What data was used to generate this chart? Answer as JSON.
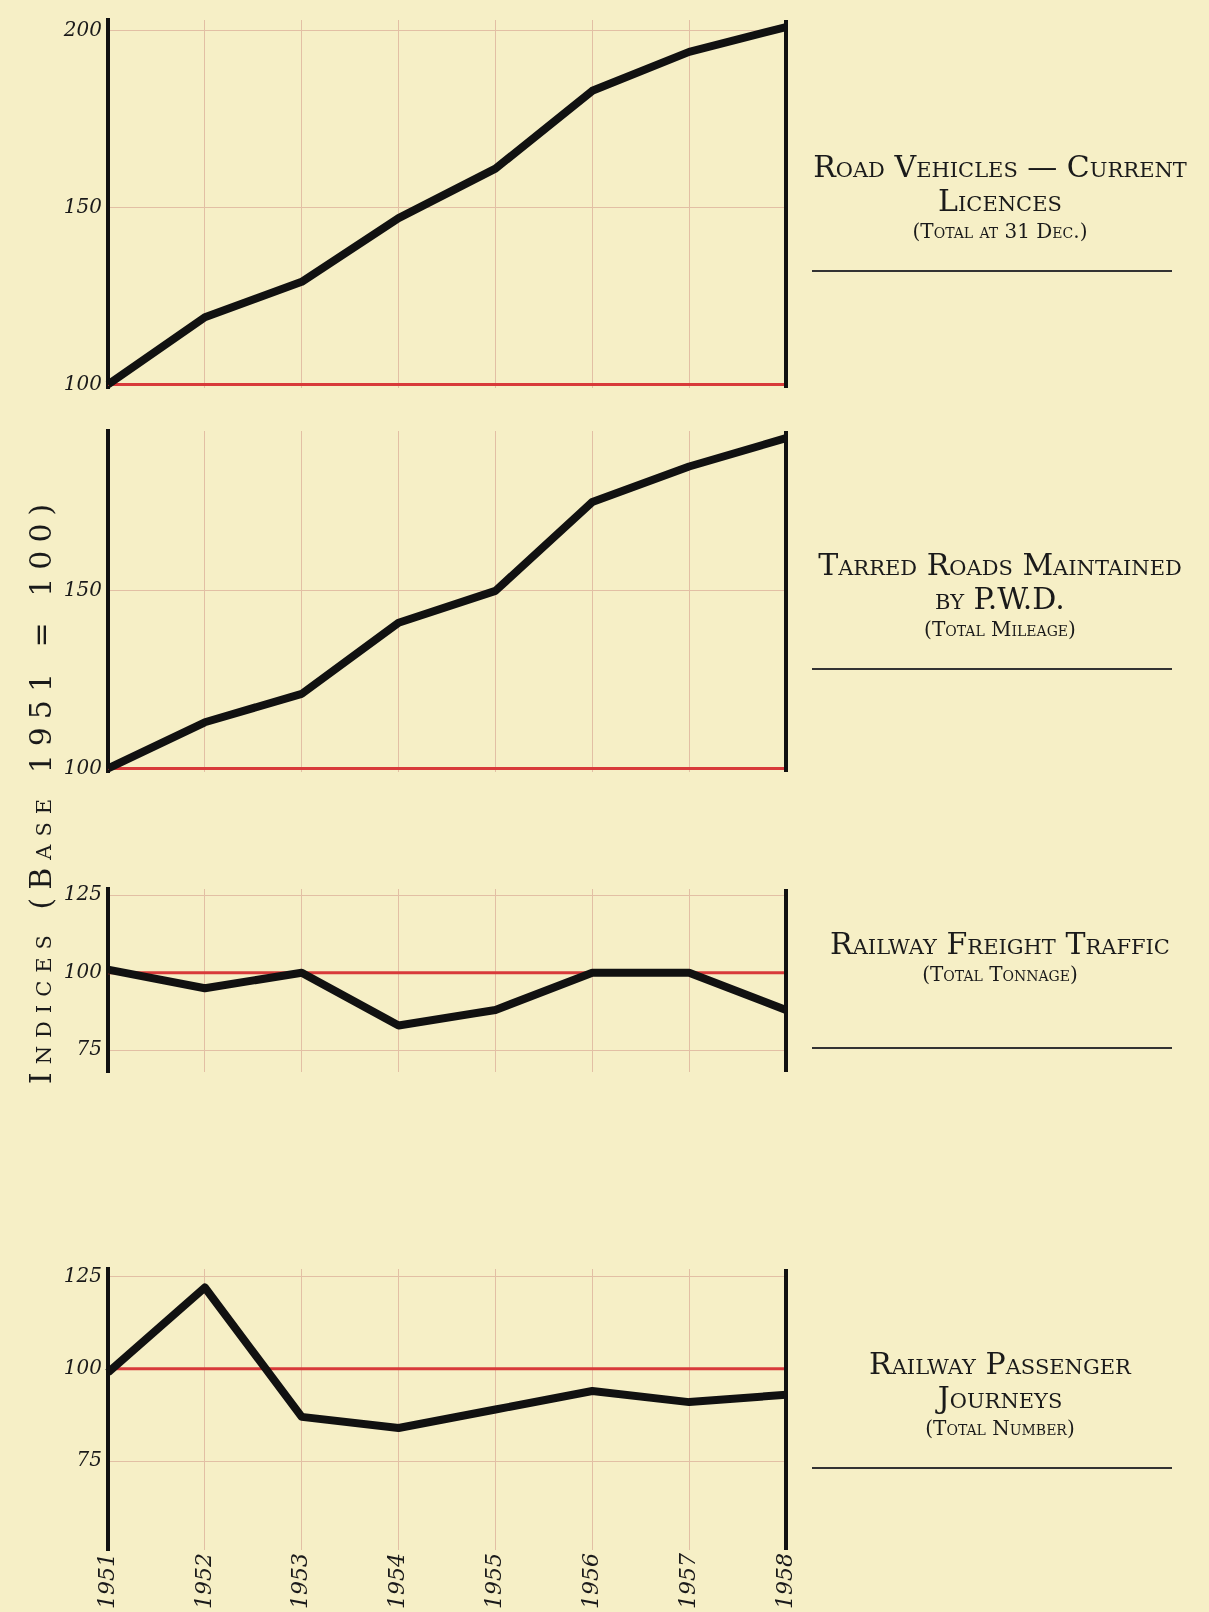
{
  "chart_data": [
    {
      "type": "line",
      "annotations": [
        "Road Vehicles — Current Licences",
        "(Total at 31 Dec.)"
      ],
      "ylabel": "Indices (Base 1951 = 100)",
      "categories": [
        "1951",
        "1952",
        "1953",
        "1954",
        "1955",
        "1956",
        "1957",
        "1958"
      ],
      "values": [
        100,
        119,
        129,
        147,
        161,
        183,
        194,
        201
      ],
      "color": "#111111",
      "ylim": [
        99,
        203
      ],
      "yticks": [
        100,
        150,
        200
      ],
      "grid": true,
      "tick_labels": "y",
      "ref_lines": [
        {
          "axis": "y",
          "value": 100,
          "color": "#d83a3a"
        }
      ]
    },
    {
      "type": "line",
      "annotations": [
        "Tarred Roads Maintained by P.W.D.",
        "(Total Mileage)"
      ],
      "categories": [
        "1951",
        "1952",
        "1953",
        "1954",
        "1955",
        "1956",
        "1957",
        "1958"
      ],
      "values": [
        100,
        113,
        121,
        141,
        150,
        175,
        185,
        193
      ],
      "color": "#111111",
      "ylim": [
        99,
        195
      ],
      "yticks": [
        100,
        150
      ],
      "grid": true,
      "tick_labels": "y",
      "ref_lines": [
        {
          "axis": "y",
          "value": 100,
          "color": "#d83a3a"
        }
      ]
    },
    {
      "type": "line",
      "annotations": [
        "Railway Freight Traffic",
        "(Total Tonnage)"
      ],
      "categories": [
        "1951",
        "1952",
        "1953",
        "1954",
        "1955",
        "1956",
        "1957",
        "1958"
      ],
      "values": [
        101,
        95,
        100,
        83,
        88,
        100,
        100,
        88
      ],
      "color": "#111111",
      "ylim": [
        68,
        127
      ],
      "yticks": [
        75,
        100,
        125
      ],
      "grid": true,
      "tick_labels": "y",
      "ref_lines": [
        {
          "axis": "y",
          "value": 100,
          "color": "#d83a3a"
        }
      ]
    },
    {
      "type": "line",
      "annotations": [
        "Railway Passenger Journeys",
        "(Total Number)"
      ],
      "categories": [
        "1951",
        "1952",
        "1953",
        "1954",
        "1955",
        "1956",
        "1957",
        "1958"
      ],
      "values": [
        99,
        122,
        87,
        84,
        89,
        94,
        91,
        93
      ],
      "color": "#111111",
      "ylim": [
        51,
        127
      ],
      "yticks": [
        75,
        100,
        125
      ],
      "grid": true,
      "ref_lines": [
        {
          "axis": "y",
          "value": 100,
          "color": "#d83a3a"
        }
      ]
    }
  ]
}
